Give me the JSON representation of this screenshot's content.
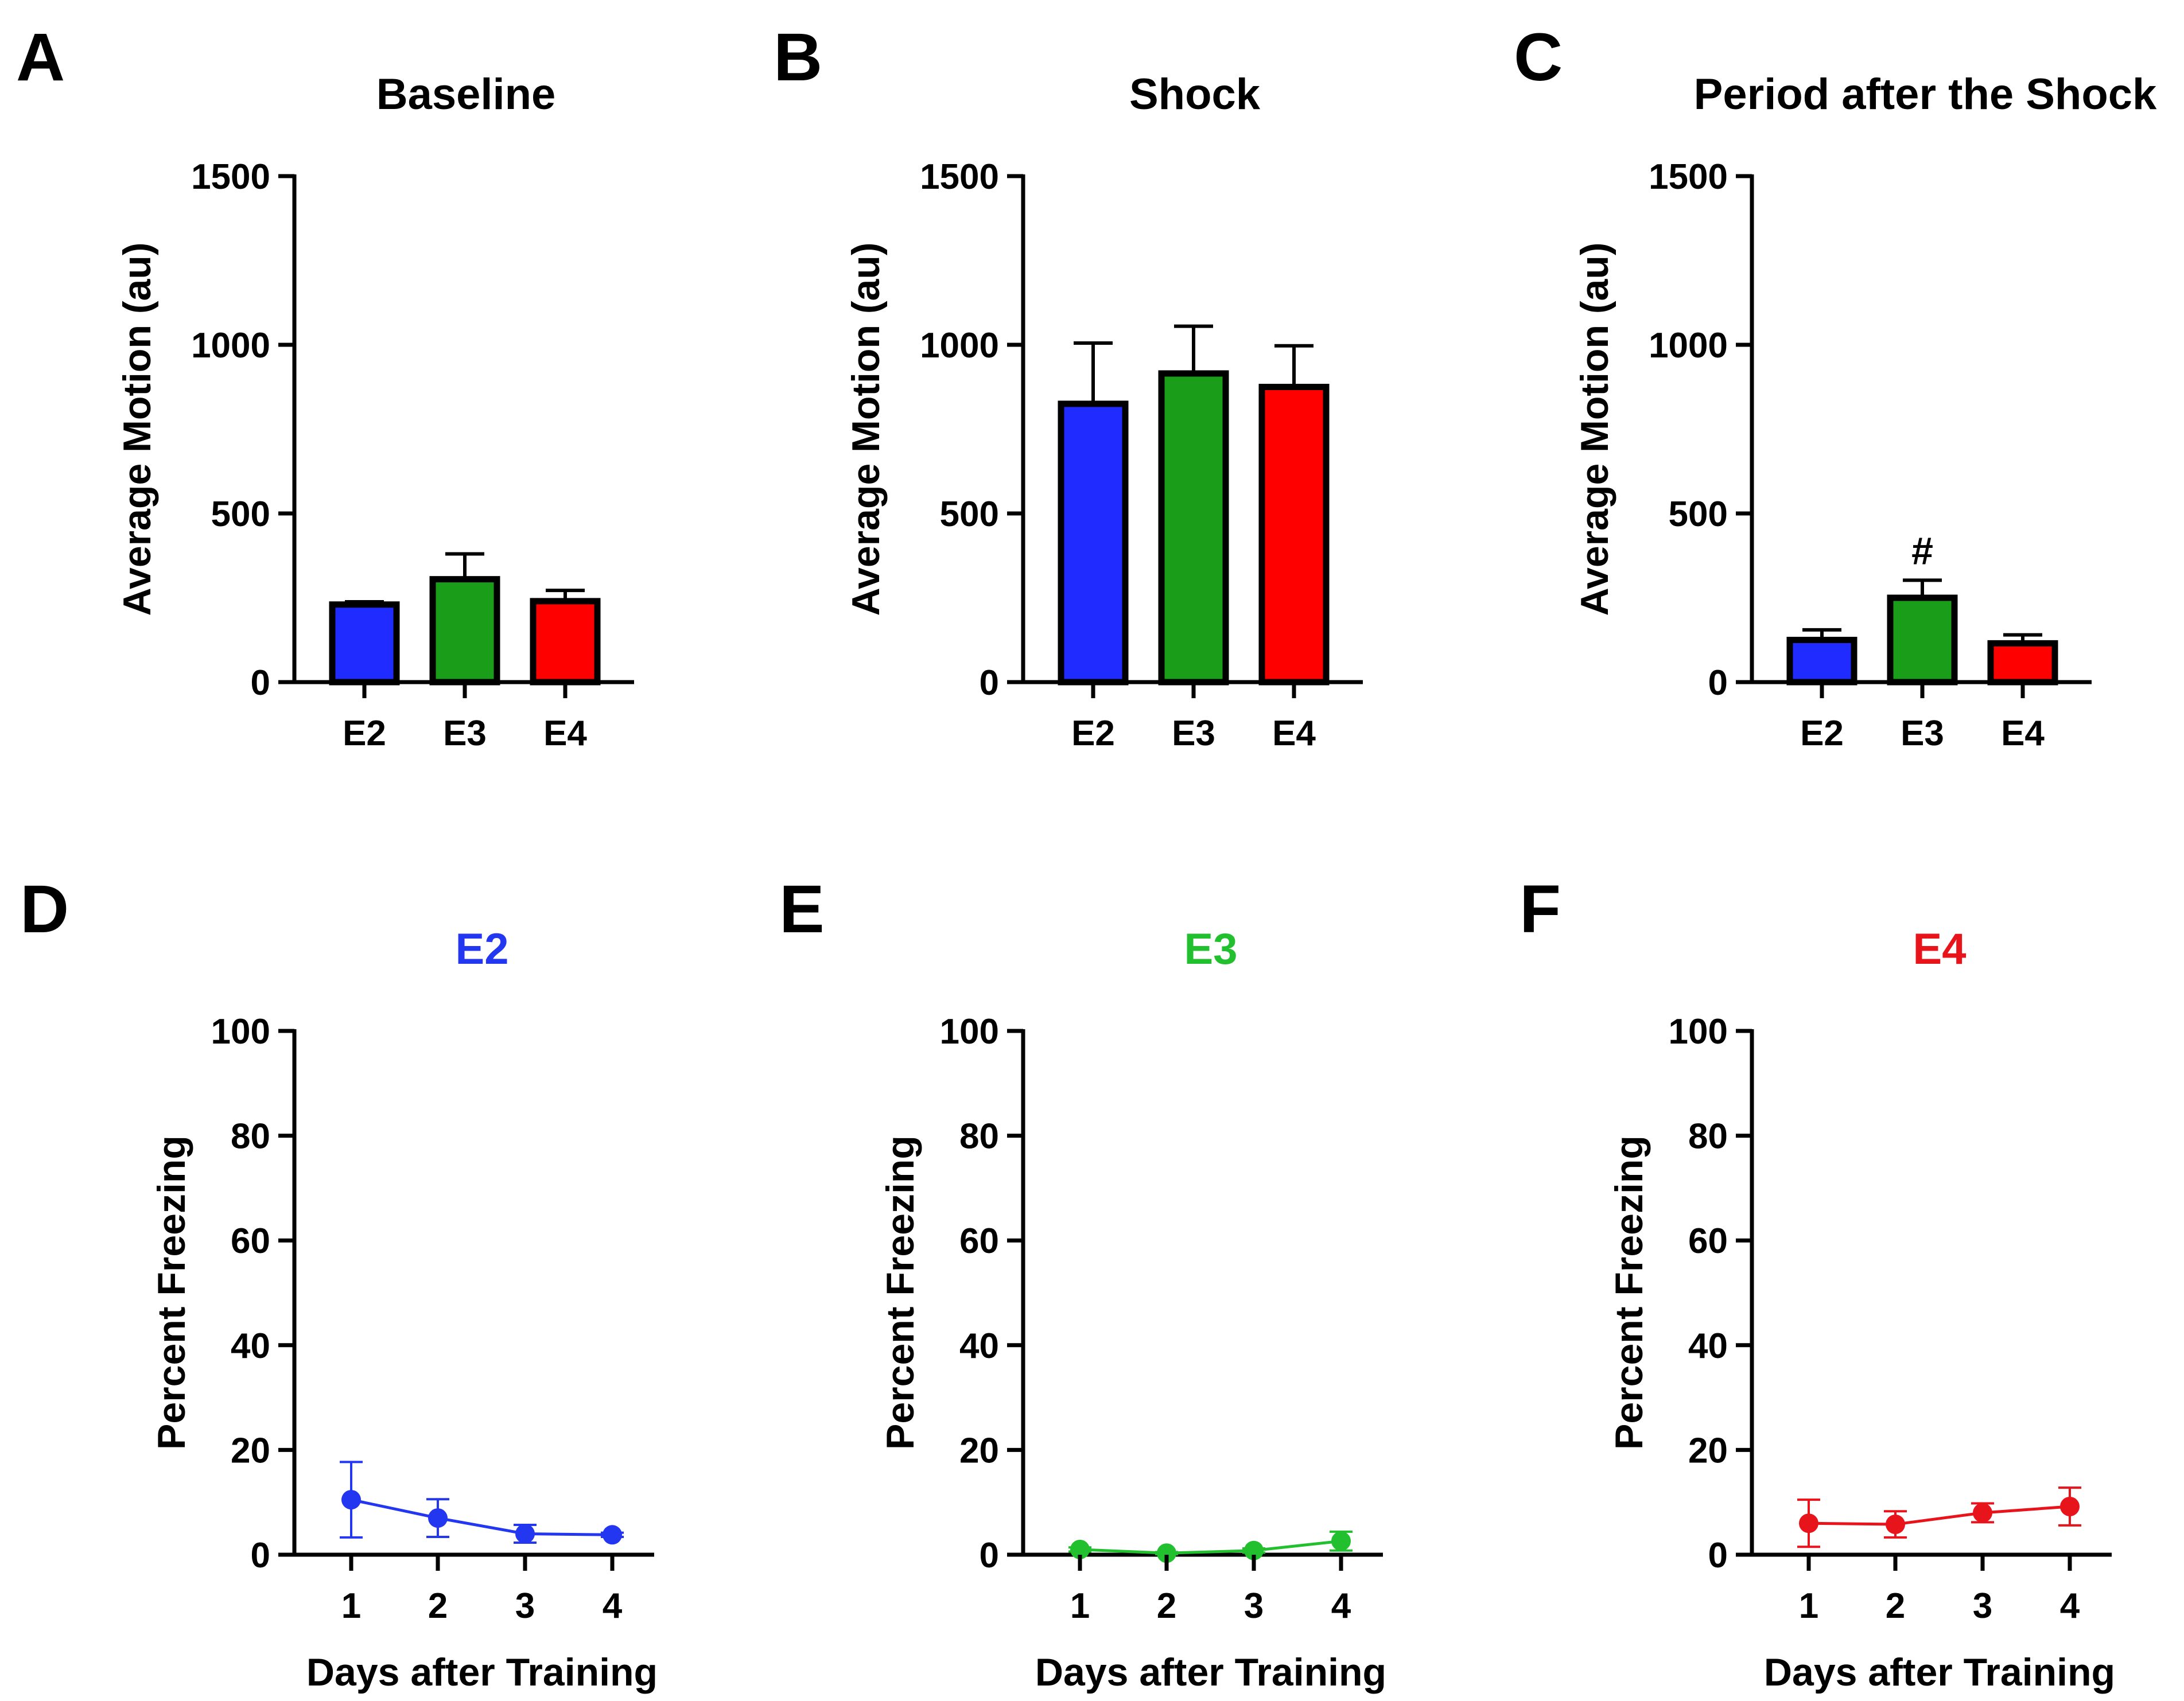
{
  "chart_data": [
    {
      "panel": "A",
      "type": "bar",
      "title": "Baseline",
      "ylabel": "Average Motion (au)",
      "xlabel": "",
      "ylim": [
        0,
        1500
      ],
      "yticks": [
        0,
        500,
        1000,
        1500
      ],
      "categories": [
        "E2",
        "E3",
        "E4"
      ],
      "values": [
        230,
        305,
        240
      ],
      "errors": [
        8,
        75,
        32
      ],
      "bar_colors": [
        "#1f2bff",
        "#1a9e1a",
        "#ff0000"
      ],
      "annotations": []
    },
    {
      "panel": "B",
      "type": "bar",
      "title": "Shock",
      "ylabel": "Average Motion (au)",
      "xlabel": "",
      "ylim": [
        0,
        1500
      ],
      "yticks": [
        0,
        500,
        1000,
        1500
      ],
      "categories": [
        "E2",
        "E3",
        "E4"
      ],
      "values": [
        825,
        915,
        875
      ],
      "errors": [
        180,
        140,
        122
      ],
      "bar_colors": [
        "#1f2bff",
        "#1a9e1a",
        "#ff0000"
      ],
      "annotations": []
    },
    {
      "panel": "C",
      "type": "bar",
      "title": "Period after the Shock",
      "ylabel": "Average Motion (au)",
      "xlabel": "",
      "ylim": [
        0,
        1500
      ],
      "yticks": [
        0,
        500,
        1000,
        1500
      ],
      "categories": [
        "E2",
        "E3",
        "E4"
      ],
      "values": [
        125,
        250,
        115
      ],
      "errors": [
        30,
        52,
        25
      ],
      "bar_colors": [
        "#1f2bff",
        "#1a9e1a",
        "#ff0000"
      ],
      "annotations": [
        {
          "category": "E3",
          "text": "#"
        }
      ]
    },
    {
      "panel": "D",
      "type": "line",
      "title": "E2",
      "title_color": "#2336f0",
      "ylabel": "Percent  Freezing",
      "xlabel": "Days after Training",
      "ylim": [
        0,
        100
      ],
      "yticks": [
        0,
        20,
        40,
        60,
        80,
        100
      ],
      "x": [
        1,
        2,
        3,
        4
      ],
      "values": [
        10.5,
        7,
        4,
        3.8
      ],
      "errors": [
        7.2,
        3.6,
        1.7,
        0.4
      ],
      "line_color": "#2336f0"
    },
    {
      "panel": "E",
      "type": "line",
      "title": "E3",
      "title_color": "#22c02e",
      "ylabel": "Percent  Freezing",
      "xlabel": "Days after Training",
      "ylim": [
        0,
        100
      ],
      "yticks": [
        0,
        20,
        40,
        60,
        80,
        100
      ],
      "x": [
        1,
        2,
        3,
        4
      ],
      "values": [
        1,
        0.3,
        0.8,
        2.6
      ],
      "errors": [
        0.4,
        0.2,
        0.4,
        1.8
      ],
      "line_color": "#22c02e"
    },
    {
      "panel": "F",
      "type": "line",
      "title": "E4",
      "title_color": "#e8141b",
      "ylabel": "Percent  Freezing",
      "xlabel": "Days after Training",
      "ylim": [
        0,
        100
      ],
      "yticks": [
        0,
        20,
        40,
        60,
        80,
        100
      ],
      "x": [
        1,
        2,
        3,
        4
      ],
      "values": [
        6,
        5.8,
        8,
        9.2
      ],
      "errors": [
        4.5,
        2.5,
        1.8,
        3.6
      ],
      "line_color": "#e8141b"
    }
  ]
}
